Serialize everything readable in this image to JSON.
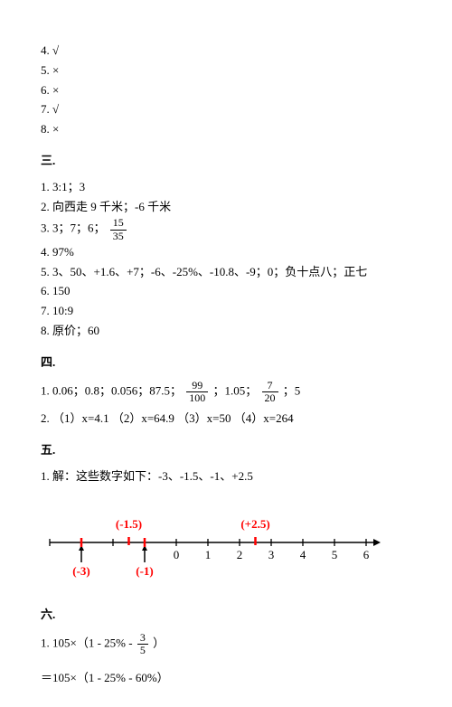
{
  "tf": {
    "i4": "4. √",
    "i5": "5. ×",
    "i6": "6. ×",
    "i7": "7. √",
    "i8": "8. ×"
  },
  "section3": {
    "title": "三.",
    "i1": "1. 3:1；3",
    "i2": "2. 向西走 9 千米；-6 千米",
    "i3_pre": "3. 3；7；6；",
    "i3_num": "15",
    "i3_den": "35",
    "i4": "4. 97%",
    "i5": "5.  3、50、+1.6、+7；-6、-25%、-10.8、-9；0；负十点八；正七",
    "i6": "6. 150",
    "i7": "7. 10:9",
    "i8": "8. 原价；60"
  },
  "section4": {
    "title": "四.",
    "i1_a": "1. 0.06；0.8；0.056；87.5；",
    "i1_f1n": "99",
    "i1_f1d": "100",
    "i1_b": "；1.05；",
    "i1_f2n": "7",
    "i1_f2d": "20",
    "i1_c": "；5",
    "i2": "2. （1）x=4.1 （2）x=64.9 （3）x=50 （4）x=264"
  },
  "section5": {
    "title": "五.",
    "i1": "1. 解：这些数字如下：-3、-1.5、-1、+2.5",
    "numberline": {
      "ticks": [
        -4,
        -3,
        -2,
        -1,
        0,
        1,
        2,
        3,
        4,
        5,
        6
      ],
      "labels": [
        "",
        "",
        "",
        "",
        "0",
        "1",
        "2",
        "3",
        "4",
        "5",
        "6"
      ],
      "above": [
        {
          "x": -1.5,
          "text": "(-1.5)"
        },
        {
          "x": 2.5,
          "text": "(+2.5)"
        }
      ],
      "below": [
        {
          "x": -3,
          "text": "(-3)"
        },
        {
          "x": -1,
          "text": "(-1)"
        }
      ],
      "axis_color": "#000",
      "mark_color": "#ff0000",
      "label_fontsize": 13
    }
  },
  "section6": {
    "title": "六.",
    "l1_pre": "1. 105×（1 - 25% -",
    "l1_num": "3",
    "l1_den": "5",
    "l1_post": "  ）",
    "l2": "＝105×（1 - 25% - 60%）"
  }
}
